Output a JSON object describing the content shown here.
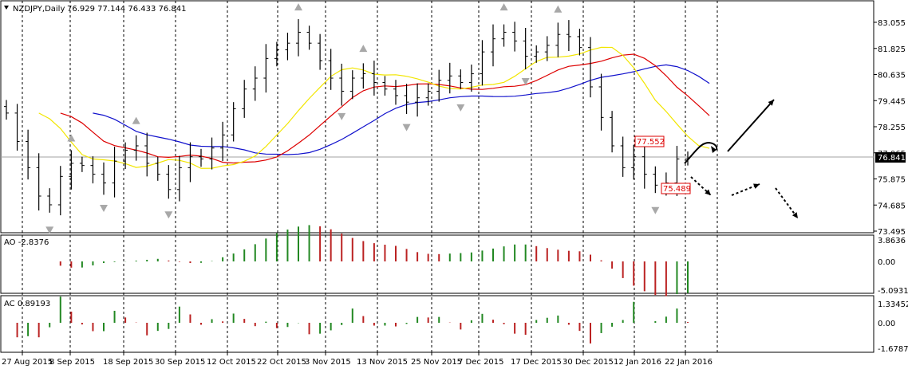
{
  "chart_window": {
    "symbol_label": "NZDJPY,Daily",
    "ohlc_label": "76.929 77.144 76.433 76.841",
    "current_price": "76.841",
    "price_axis_ticks": [
      "83.055",
      "81.825",
      "80.635",
      "79.445",
      "78.255",
      "77.065",
      "75.875",
      "74.685",
      "73.495"
    ],
    "date_axis_ticks": [
      "27 Aug 2015",
      "8 Sep 2015",
      "18 Sep 2015",
      "30 Sep 2015",
      "12 Oct 2015",
      "22 Oct 2015",
      "3 Nov 2015",
      "13 Nov 2015",
      "25 Nov 2015",
      "7 Dec 2015",
      "17 Dec 2015",
      "30 Dec 2015",
      "12 Jan 2016",
      "22 Jan 2016"
    ],
    "annotations": {
      "high_label": "77.552",
      "low_label": "75.489"
    },
    "ao_panel": {
      "label": "AO -2.8376",
      "ticks": [
        "3.8636",
        "0.00",
        "-5.0931"
      ]
    },
    "ac_panel": {
      "label": "AC 0.89193",
      "ticks": [
        "1.33452",
        "0.00",
        "-1.67878"
      ]
    }
  },
  "chart_data": {
    "type": "bar",
    "title": "NZDJPY,Daily",
    "ylim": [
      73.3,
      84.0
    ],
    "approx_closes": [
      78.9,
      77.6,
      76.4,
      75.1,
      74.7,
      76.0,
      76.6,
      76.5,
      76.1,
      75.7,
      76.7,
      77.2,
      77.4,
      76.6,
      76.1,
      75.4,
      76.4,
      76.9,
      76.8,
      77.3,
      77.9,
      79.1,
      80.0,
      80.5,
      81.4,
      81.8,
      82.1,
      82.6,
      82.1,
      81.3,
      80.5,
      79.9,
      80.5,
      80.7,
      80.3,
      80.0,
      79.7,
      79.4,
      79.6,
      79.9,
      80.4,
      80.6,
      80.3,
      80.7,
      81.7,
      82.3,
      82.6,
      82.2,
      81.5,
      81.7,
      82.0,
      82.5,
      82.4,
      81.9,
      80.1,
      78.7,
      77.4,
      76.4,
      76.9,
      76.1,
      75.6,
      75.7,
      76.8,
      76.84
    ],
    "indicators": [
      "Alligator",
      "Awesome Oscillator",
      "Accelerator Oscillator",
      "Fractals"
    ],
    "colors": {
      "bar_up": "#000000",
      "jaw": "#1010cc",
      "teeth": "#dd0000",
      "lips": "#f2e600",
      "ao_up": "#228822",
      "ao_down": "#bb2222",
      "label_box": "#dd0000"
    }
  }
}
